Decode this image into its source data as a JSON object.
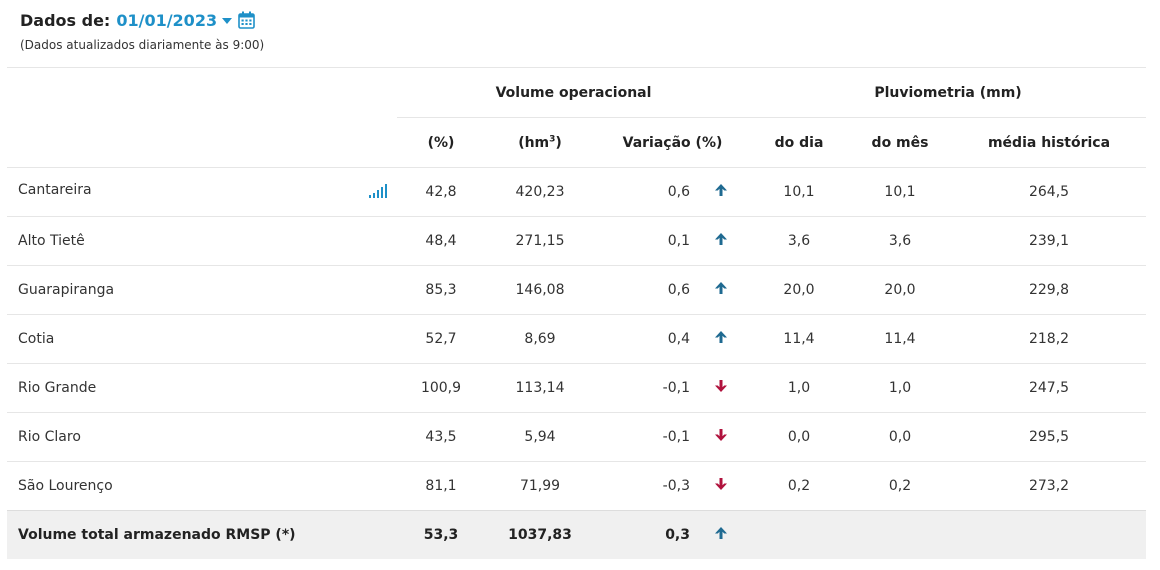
{
  "header": {
    "title": "Dados de:",
    "date": "01/01/2023",
    "note": "(Dados atualizados diariamente às 9:00)"
  },
  "table": {
    "group_headers": {
      "volume": "Volume operacional",
      "pluvio": "Pluviometria (mm)"
    },
    "columns": {
      "pct": "(%)",
      "hm3_base": "(hm",
      "hm3_sup": "3",
      "hm3_end": ")",
      "variation": "Variação (%)",
      "day": "do dia",
      "month": "do mês",
      "historic": "média histórica"
    },
    "rows": [
      {
        "name": "Cantareira",
        "pct": "42,8",
        "hm3": "420,23",
        "variation": "0,6",
        "trend": "up",
        "day": "10,1",
        "month": "10,1",
        "historic": "264,5"
      },
      {
        "name": "Alto Tietê",
        "pct": "48,4",
        "hm3": "271,15",
        "variation": "0,1",
        "trend": "up",
        "day": "3,6",
        "month": "3,6",
        "historic": "239,1"
      },
      {
        "name": "Guarapiranga",
        "pct": "85,3",
        "hm3": "146,08",
        "variation": "0,6",
        "trend": "up",
        "day": "20,0",
        "month": "20,0",
        "historic": "229,8"
      },
      {
        "name": "Cotia",
        "pct": "52,7",
        "hm3": "8,69",
        "variation": "0,4",
        "trend": "up",
        "day": "11,4",
        "month": "11,4",
        "historic": "218,2"
      },
      {
        "name": "Rio Grande",
        "pct": "100,9",
        "hm3": "113,14",
        "variation": "-0,1",
        "trend": "down",
        "day": "1,0",
        "month": "1,0",
        "historic": "247,5"
      },
      {
        "name": "Rio Claro",
        "pct": "43,5",
        "hm3": "5,94",
        "variation": "-0,1",
        "trend": "down",
        "day": "0,0",
        "month": "0,0",
        "historic": "295,5"
      },
      {
        "name": "São Lourenço",
        "pct": "81,1",
        "hm3": "71,99",
        "variation": "-0,3",
        "trend": "down",
        "day": "0,2",
        "month": "0,2",
        "historic": "273,2"
      }
    ],
    "total": {
      "name": "Volume total armazenado RMSP (*)",
      "pct": "53,3",
      "hm3": "1037,83",
      "variation": "0,3",
      "trend": "up"
    }
  },
  "colors": {
    "accent": "#1e90c8",
    "up": "#1f6a91",
    "down": "#b0123d"
  },
  "icons": {
    "calendar": "calendar-icon",
    "caret": "chevron-down-icon",
    "chart": "bar-chart-icon",
    "up": "arrow-up-icon",
    "down": "arrow-down-icon"
  }
}
